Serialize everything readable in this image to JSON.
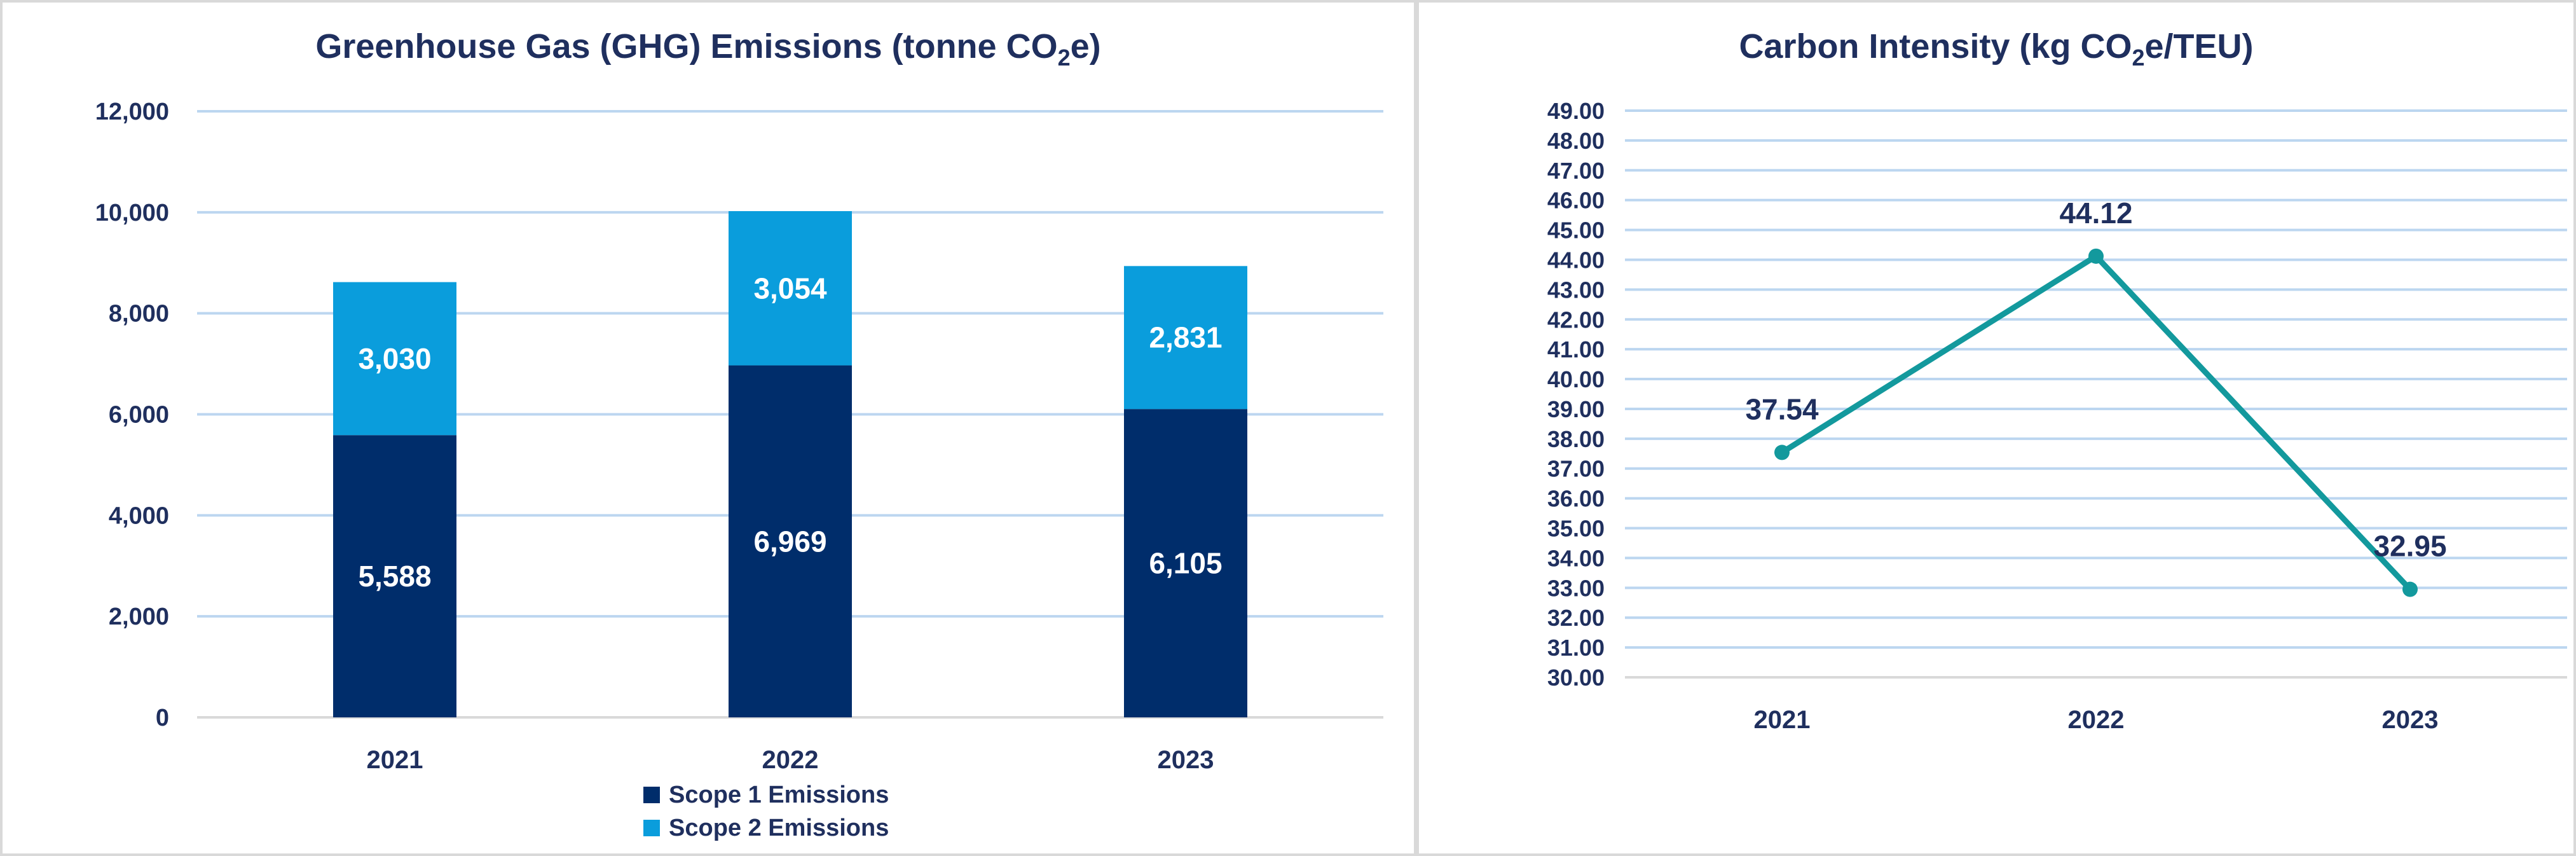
{
  "chart_data": [
    {
      "type": "bar",
      "stacked": true,
      "title_main": "Greenhouse Gas (GHG) Emissions (tonne CO",
      "title_sub": "2",
      "title_tail": "e)",
      "categories": [
        "2021",
        "2022",
        "2023"
      ],
      "series": [
        {
          "name": "Scope 1 Emissions",
          "values": [
            5588,
            6969,
            6105
          ],
          "labels": [
            "5,588",
            "6,969",
            "6,105"
          ],
          "color": "#002d6b"
        },
        {
          "name": "Scope 2 Emissions",
          "values": [
            3030,
            3054,
            2831
          ],
          "labels": [
            "3,030",
            "3,054",
            "2,831"
          ],
          "color": "#0a9ddc"
        }
      ],
      "ylim": [
        0,
        12000
      ],
      "yticks": [
        "0",
        "2,000",
        "4,000",
        "6,000",
        "8,000",
        "10,000",
        "12,000"
      ],
      "grid": true,
      "legend": "bottom"
    },
    {
      "type": "line",
      "title_main": "Carbon Intensity (kg CO",
      "title_sub": "2",
      "title_tail": "e/TEU)",
      "categories": [
        "2021",
        "2022",
        "2023"
      ],
      "series": [
        {
          "values": [
            37.54,
            44.12,
            32.95
          ],
          "labels": [
            "37.54",
            "44.12",
            "32.95"
          ],
          "color": "#13999d"
        }
      ],
      "ylim": [
        30,
        49
      ],
      "yticks": [
        "30.00",
        "31.00",
        "32.00",
        "33.00",
        "34.00",
        "35.00",
        "36.00",
        "37.00",
        "38.00",
        "39.00",
        "40.00",
        "41.00",
        "42.00",
        "43.00",
        "44.00",
        "45.00",
        "46.00",
        "47.00",
        "48.00",
        "49.00"
      ],
      "grid": true
    }
  ],
  "colors": {
    "text": "#1f2f5e",
    "grid": "#bcd6f0",
    "axis": "#d9d9d9"
  }
}
